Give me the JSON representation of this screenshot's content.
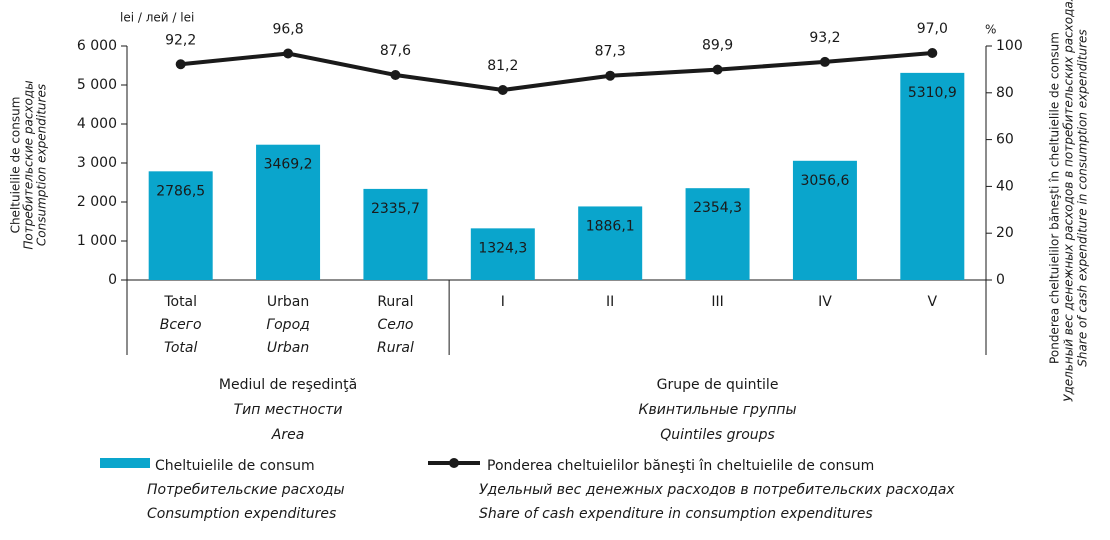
{
  "chart_data": {
    "type": "bar_line",
    "y_unit": "lei / лей / lei",
    "y2_unit": "%",
    "ylabel": [
      "Cheltuielile de consum",
      "Потребительские расходы",
      "Consumption expenditures"
    ],
    "y2label": [
      "Ponderea cheltuielilor băneşti în cheltuielile de consum",
      "Удельный вес денежных расходов в потребительских расходах",
      "Share of cash expenditure in consumption expenditures"
    ],
    "categories": [
      [
        "Total",
        "Всего",
        "Total"
      ],
      [
        "Urban",
        "Город",
        "Urban"
      ],
      [
        "Rural",
        "Село",
        "Rural"
      ],
      [
        "I"
      ],
      [
        "II"
      ],
      [
        "III"
      ],
      [
        "IV"
      ],
      [
        "V"
      ]
    ],
    "groups": [
      [
        "Mediul de reşedinţă",
        "Тип местности",
        "Area"
      ],
      [
        "Grupe de quintile",
        "Квинтильные группы",
        "Quintiles groups"
      ]
    ],
    "ylim": [
      0,
      6000
    ],
    "yticks": [
      0,
      {
        "value": 1000,
        "label": "1 000"
      },
      {
        "value": 2000,
        "label": "2 000"
      },
      {
        "value": 3000,
        "label": "3 000"
      },
      {
        "value": 4000,
        "label": "4 000"
      },
      {
        "value": 5000,
        "label": "5 000"
      },
      {
        "value": 6000,
        "label": "6 000"
      }
    ],
    "y2lim": [
      0,
      100
    ],
    "y2ticks": [
      0,
      20,
      40,
      60,
      80,
      100
    ],
    "series": [
      {
        "name": [
          "Cheltuielile de consum",
          "Потребительские расходы",
          "Consumption expenditures"
        ],
        "type": "bar",
        "color": "#0aa5cc",
        "values": [
          2786.5,
          3469.2,
          2335.7,
          1324.3,
          1886.1,
          2354.3,
          3056.6,
          5310.9
        ],
        "value_labels": [
          "2786,5",
          "3469,2",
          "2335,7",
          "1324,3",
          "1886,1",
          "2354,3",
          "3056,6",
          "5310,9"
        ]
      },
      {
        "name": [
          "Ponderea cheltuielilor băneşti în cheltuielile de consum",
          "Удельный вес денежных расходов в потребительских расходах",
          "Share of cash expenditure in consumption expenditures"
        ],
        "type": "line",
        "axis": "y2",
        "color": "#1a1a1a",
        "values": [
          92.2,
          96.8,
          87.6,
          81.2,
          87.3,
          89.9,
          93.2,
          97.0
        ],
        "value_labels": [
          "92,2",
          "96,8",
          "87,6",
          "81,2",
          "87,3",
          "89,9",
          "93,2",
          "97,0"
        ]
      }
    ]
  }
}
